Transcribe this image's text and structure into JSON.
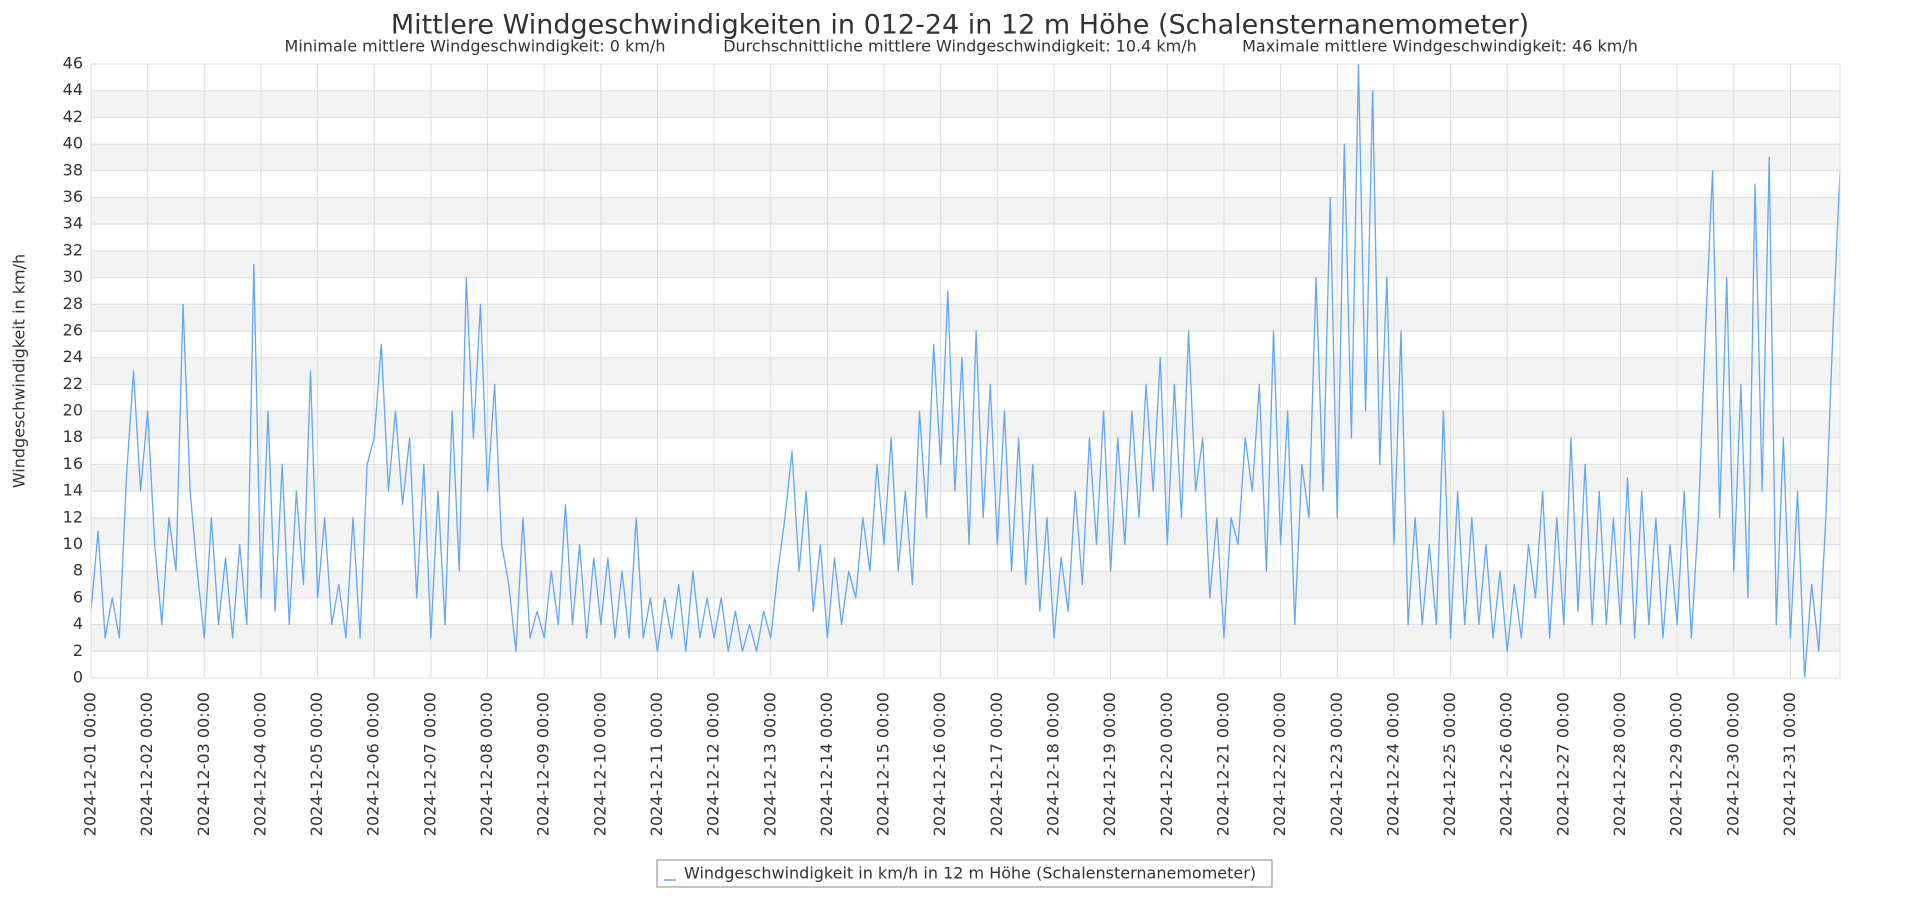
{
  "chart_data": {
    "type": "line",
    "title": "Mittlere Windgeschwindigkeiten in 012-24 in 12 m Höhe (Schalensternanemometer)",
    "subtitles": [
      "Minimale mittlere Windgeschwindigkeit: 0 km/h",
      "Durchschnittliche mittlere Windgeschwindigkeit: 10.4 km/h",
      "Maximale mittlere Windgeschwindigkeit: 46 km/h"
    ],
    "y_label": "Windgeschwindigkeit in km/h",
    "grid": true,
    "ylim": [
      0,
      46
    ],
    "yticks": [
      0,
      2,
      4,
      6,
      8,
      10,
      12,
      14,
      16,
      18,
      20,
      22,
      24,
      26,
      28,
      30,
      32,
      34,
      36,
      38,
      40,
      42,
      44,
      46
    ],
    "xticks": [
      "2024-12-01 00:00",
      "2024-12-02 00:00",
      "2024-12-03 00:00",
      "2024-12-04 00:00",
      "2024-12-05 00:00",
      "2024-12-06 00:00",
      "2024-12-07 00:00",
      "2024-12-08 00:00",
      "2024-12-09 00:00",
      "2024-12-10 00:00",
      "2024-12-11 00:00",
      "2024-12-12 00:00",
      "2024-12-13 00:00",
      "2024-12-14 00:00",
      "2024-12-15 00:00",
      "2024-12-16 00:00",
      "2024-12-17 00:00",
      "2024-12-18 00:00",
      "2024-12-19 00:00",
      "2024-12-20 00:00",
      "2024-12-21 00:00",
      "2024-12-22 00:00",
      "2024-12-23 00:00",
      "2024-12-24 00:00",
      "2024-12-25 00:00",
      "2024-12-26 00:00",
      "2024-12-27 00:00",
      "2024-12-28 00:00",
      "2024-12-29 00:00",
      "2024-12-30 00:00",
      "2024-12-31 00:00"
    ],
    "x": [
      "2024-12-01 00:00",
      "2024-12-01 03:00",
      "2024-12-01 06:00",
      "2024-12-01 09:00",
      "2024-12-01 12:00",
      "2024-12-01 15:00",
      "2024-12-01 18:00",
      "2024-12-01 21:00",
      "2024-12-02 00:00",
      "2024-12-02 03:00",
      "2024-12-02 06:00",
      "2024-12-02 09:00",
      "2024-12-02 12:00",
      "2024-12-02 15:00",
      "2024-12-02 18:00",
      "2024-12-02 21:00",
      "2024-12-03 00:00",
      "2024-12-03 03:00",
      "2024-12-03 06:00",
      "2024-12-03 09:00",
      "2024-12-03 12:00",
      "2024-12-03 15:00",
      "2024-12-03 18:00",
      "2024-12-03 21:00",
      "2024-12-04 00:00",
      "2024-12-04 03:00",
      "2024-12-04 06:00",
      "2024-12-04 09:00",
      "2024-12-04 12:00",
      "2024-12-04 15:00",
      "2024-12-04 18:00",
      "2024-12-04 21:00",
      "2024-12-05 00:00",
      "2024-12-05 03:00",
      "2024-12-05 06:00",
      "2024-12-05 09:00",
      "2024-12-05 12:00",
      "2024-12-05 15:00",
      "2024-12-05 18:00",
      "2024-12-05 21:00",
      "2024-12-06 00:00",
      "2024-12-06 03:00",
      "2024-12-06 06:00",
      "2024-12-06 09:00",
      "2024-12-06 12:00",
      "2024-12-06 15:00",
      "2024-12-06 18:00",
      "2024-12-06 21:00",
      "2024-12-07 00:00",
      "2024-12-07 03:00",
      "2024-12-07 06:00",
      "2024-12-07 09:00",
      "2024-12-07 12:00",
      "2024-12-07 15:00",
      "2024-12-07 18:00",
      "2024-12-07 21:00",
      "2024-12-08 00:00",
      "2024-12-08 03:00",
      "2024-12-08 06:00",
      "2024-12-08 09:00",
      "2024-12-08 12:00",
      "2024-12-08 15:00",
      "2024-12-08 18:00",
      "2024-12-08 21:00",
      "2024-12-09 00:00",
      "2024-12-09 03:00",
      "2024-12-09 06:00",
      "2024-12-09 09:00",
      "2024-12-09 12:00",
      "2024-12-09 15:00",
      "2024-12-09 18:00",
      "2024-12-09 21:00",
      "2024-12-10 00:00",
      "2024-12-10 03:00",
      "2024-12-10 06:00",
      "2024-12-10 09:00",
      "2024-12-10 12:00",
      "2024-12-10 15:00",
      "2024-12-10 18:00",
      "2024-12-10 21:00",
      "2024-12-11 00:00",
      "2024-12-11 03:00",
      "2024-12-11 06:00",
      "2024-12-11 09:00",
      "2024-12-11 12:00",
      "2024-12-11 15:00",
      "2024-12-11 18:00",
      "2024-12-11 21:00",
      "2024-12-12 00:00",
      "2024-12-12 03:00",
      "2024-12-12 06:00",
      "2024-12-12 09:00",
      "2024-12-12 12:00",
      "2024-12-12 15:00",
      "2024-12-12 18:00",
      "2024-12-12 21:00",
      "2024-12-13 00:00",
      "2024-12-13 03:00",
      "2024-12-13 06:00",
      "2024-12-13 09:00",
      "2024-12-13 12:00",
      "2024-12-13 15:00",
      "2024-12-13 18:00",
      "2024-12-13 21:00",
      "2024-12-14 00:00",
      "2024-12-14 03:00",
      "2024-12-14 06:00",
      "2024-12-14 09:00",
      "2024-12-14 12:00",
      "2024-12-14 15:00",
      "2024-12-14 18:00",
      "2024-12-14 21:00",
      "2024-12-15 00:00",
      "2024-12-15 03:00",
      "2024-12-15 06:00",
      "2024-12-15 09:00",
      "2024-12-15 12:00",
      "2024-12-15 15:00",
      "2024-12-15 18:00",
      "2024-12-15 21:00",
      "2024-12-16 00:00",
      "2024-12-16 03:00",
      "2024-12-16 06:00",
      "2024-12-16 09:00",
      "2024-12-16 12:00",
      "2024-12-16 15:00",
      "2024-12-16 18:00",
      "2024-12-16 21:00",
      "2024-12-17 00:00",
      "2024-12-17 03:00",
      "2024-12-17 06:00",
      "2024-12-17 09:00",
      "2024-12-17 12:00",
      "2024-12-17 15:00",
      "2024-12-17 18:00",
      "2024-12-17 21:00",
      "2024-12-18 00:00",
      "2024-12-18 03:00",
      "2024-12-18 06:00",
      "2024-12-18 09:00",
      "2024-12-18 12:00",
      "2024-12-18 15:00",
      "2024-12-18 18:00",
      "2024-12-18 21:00",
      "2024-12-19 00:00",
      "2024-12-19 03:00",
      "2024-12-19 06:00",
      "2024-12-19 09:00",
      "2024-12-19 12:00",
      "2024-12-19 15:00",
      "2024-12-19 18:00",
      "2024-12-19 21:00",
      "2024-12-20 00:00",
      "2024-12-20 03:00",
      "2024-12-20 06:00",
      "2024-12-20 09:00",
      "2024-12-20 12:00",
      "2024-12-20 15:00",
      "2024-12-20 18:00",
      "2024-12-20 21:00",
      "2024-12-21 00:00",
      "2024-12-21 03:00",
      "2024-12-21 06:00",
      "2024-12-21 09:00",
      "2024-12-21 12:00",
      "2024-12-21 15:00",
      "2024-12-21 18:00",
      "2024-12-21 21:00",
      "2024-12-22 00:00",
      "2024-12-22 03:00",
      "2024-12-22 06:00",
      "2024-12-22 09:00",
      "2024-12-22 12:00",
      "2024-12-22 15:00",
      "2024-12-22 18:00",
      "2024-12-22 21:00",
      "2024-12-23 00:00",
      "2024-12-23 03:00",
      "2024-12-23 06:00",
      "2024-12-23 09:00",
      "2024-12-23 12:00",
      "2024-12-23 15:00",
      "2024-12-23 18:00",
      "2024-12-23 21:00",
      "2024-12-24 00:00",
      "2024-12-24 03:00",
      "2024-12-24 06:00",
      "2024-12-24 09:00",
      "2024-12-24 12:00",
      "2024-12-24 15:00",
      "2024-12-24 18:00",
      "2024-12-24 21:00",
      "2024-12-25 00:00",
      "2024-12-25 03:00",
      "2024-12-25 06:00",
      "2024-12-25 09:00",
      "2024-12-25 12:00",
      "2024-12-25 15:00",
      "2024-12-25 18:00",
      "2024-12-25 21:00",
      "2024-12-26 00:00",
      "2024-12-26 03:00",
      "2024-12-26 06:00",
      "2024-12-26 09:00",
      "2024-12-26 12:00",
      "2024-12-26 15:00",
      "2024-12-26 18:00",
      "2024-12-26 21:00",
      "2024-12-27 00:00",
      "2024-12-27 03:00",
      "2024-12-27 06:00",
      "2024-12-27 09:00",
      "2024-12-27 12:00",
      "2024-12-27 15:00",
      "2024-12-27 18:00",
      "2024-12-27 21:00",
      "2024-12-28 00:00",
      "2024-12-28 03:00",
      "2024-12-28 06:00",
      "2024-12-28 09:00",
      "2024-12-28 12:00",
      "2024-12-28 15:00",
      "2024-12-28 18:00",
      "2024-12-28 21:00",
      "2024-12-29 00:00",
      "2024-12-29 03:00",
      "2024-12-29 06:00",
      "2024-12-29 09:00",
      "2024-12-29 12:00",
      "2024-12-29 15:00",
      "2024-12-29 18:00",
      "2024-12-29 21:00",
      "2024-12-30 00:00",
      "2024-12-30 03:00",
      "2024-12-30 06:00",
      "2024-12-30 09:00",
      "2024-12-30 12:00",
      "2024-12-30 15:00",
      "2024-12-30 18:00",
      "2024-12-30 21:00",
      "2024-12-31 00:00",
      "2024-12-31 03:00",
      "2024-12-31 06:00",
      "2024-12-31 09:00",
      "2024-12-31 12:00",
      "2024-12-31 15:00",
      "2024-12-31 18:00",
      "2024-12-31 21:00"
    ],
    "series": [
      {
        "name": "Windgeschwindigkeit in km/h in 12 m Höhe (Schalensternanemometer)",
        "color": "#62a8f2",
        "values": [
          5,
          11,
          3,
          6,
          3,
          15,
          23,
          14,
          20,
          10,
          4,
          12,
          8,
          28,
          14,
          8,
          3,
          12,
          4,
          9,
          3,
          10,
          4,
          31,
          6,
          20,
          5,
          16,
          4,
          14,
          7,
          23,
          6,
          12,
          4,
          7,
          3,
          12,
          3,
          16,
          18,
          25,
          14,
          20,
          13,
          18,
          6,
          16,
          3,
          14,
          4,
          20,
          8,
          30,
          18,
          28,
          14,
          22,
          10,
          7,
          2,
          12,
          3,
          5,
          3,
          8,
          4,
          13,
          4,
          10,
          3,
          9,
          4,
          9,
          3,
          8,
          3,
          12,
          3,
          6,
          2,
          6,
          3,
          7,
          2,
          8,
          3,
          6,
          3,
          6,
          2,
          5,
          2,
          4,
          2,
          5,
          3,
          8,
          12,
          17,
          8,
          14,
          5,
          10,
          3,
          9,
          4,
          8,
          6,
          12,
          8,
          16,
          10,
          18,
          8,
          14,
          7,
          20,
          12,
          25,
          16,
          29,
          14,
          24,
          10,
          26,
          12,
          22,
          10,
          20,
          8,
          18,
          7,
          16,
          5,
          12,
          3,
          9,
          5,
          14,
          7,
          18,
          10,
          20,
          8,
          18,
          10,
          20,
          12,
          22,
          14,
          24,
          10,
          22,
          12,
          26,
          14,
          18,
          6,
          12,
          3,
          12,
          10,
          18,
          14,
          22,
          8,
          26,
          10,
          20,
          4,
          16,
          12,
          30,
          14,
          36,
          12,
          40,
          18,
          46,
          20,
          44,
          16,
          30,
          10,
          26,
          4,
          12,
          4,
          10,
          4,
          20,
          3,
          14,
          4,
          12,
          4,
          10,
          3,
          8,
          2,
          7,
          3,
          10,
          6,
          14,
          3,
          12,
          4,
          18,
          5,
          16,
          4,
          14,
          4,
          12,
          4,
          15,
          3,
          14,
          4,
          12,
          3,
          10,
          4,
          14,
          3,
          12,
          26,
          38,
          12,
          30,
          8,
          22,
          6,
          37,
          14,
          39,
          4,
          18,
          3,
          14,
          0,
          7,
          2,
          12,
          26,
          38
        ]
      }
    ]
  }
}
